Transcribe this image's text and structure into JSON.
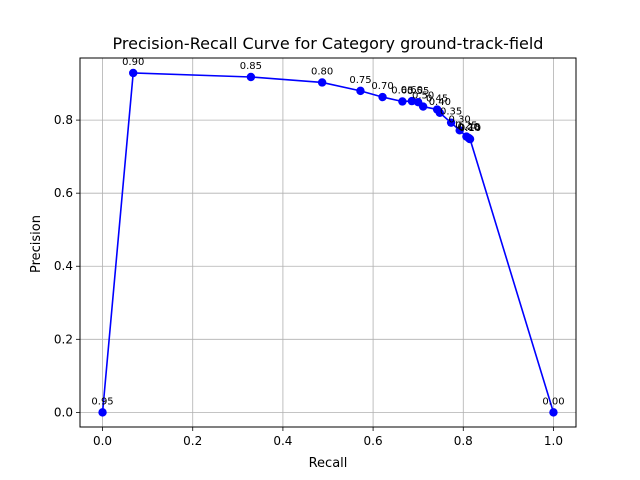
{
  "chart_data": {
    "type": "line",
    "title": "Precision-Recall Curve for Category ground-track-field",
    "xlabel": "Recall",
    "ylabel": "Precision",
    "xlim": [
      -0.05,
      1.05
    ],
    "ylim": [
      -0.04,
      0.97
    ],
    "xticks": [
      0.0,
      0.2,
      0.4,
      0.6,
      0.8,
      1.0
    ],
    "xtick_labels": [
      "0.0",
      "0.2",
      "0.4",
      "0.6",
      "0.8",
      "1.0"
    ],
    "yticks": [
      0.0,
      0.2,
      0.4,
      0.6,
      0.8
    ],
    "ytick_labels": [
      "0.0",
      "0.2",
      "0.4",
      "0.6",
      "0.8"
    ],
    "grid": true,
    "line_color": "#0000ff",
    "marker": "circle",
    "points": [
      {
        "recall": 0.0,
        "precision": 0.0,
        "label": "0.95"
      },
      {
        "recall": 0.068,
        "precision": 0.929,
        "label": "0.90"
      },
      {
        "recall": 0.329,
        "precision": 0.918,
        "label": "0.85"
      },
      {
        "recall": 0.487,
        "precision": 0.903,
        "label": "0.80"
      },
      {
        "recall": 0.572,
        "precision": 0.88,
        "label": "0.75"
      },
      {
        "recall": 0.621,
        "precision": 0.863,
        "label": "0.70"
      },
      {
        "recall": 0.665,
        "precision": 0.851,
        "label": "0.65"
      },
      {
        "recall": 0.686,
        "precision": 0.852,
        "label": "0.60"
      },
      {
        "recall": 0.7,
        "precision": 0.849,
        "label": "0.55"
      },
      {
        "recall": 0.711,
        "precision": 0.837,
        "label": "0.50"
      },
      {
        "recall": 0.742,
        "precision": 0.829,
        "label": "0.45"
      },
      {
        "recall": 0.748,
        "precision": 0.82,
        "label": "0.40"
      },
      {
        "recall": 0.773,
        "precision": 0.793,
        "label": "0.35"
      },
      {
        "recall": 0.792,
        "precision": 0.772,
        "label": "0.30"
      },
      {
        "recall": 0.807,
        "precision": 0.755,
        "label": "0.25"
      },
      {
        "recall": 0.812,
        "precision": 0.751,
        "label": "0.20"
      },
      {
        "recall": 0.814,
        "precision": 0.749,
        "label": "0.15"
      },
      {
        "recall": 0.815,
        "precision": 0.748,
        "label": "0.10"
      },
      {
        "recall": 1.0,
        "precision": 0.0,
        "label": "0.00"
      }
    ]
  }
}
